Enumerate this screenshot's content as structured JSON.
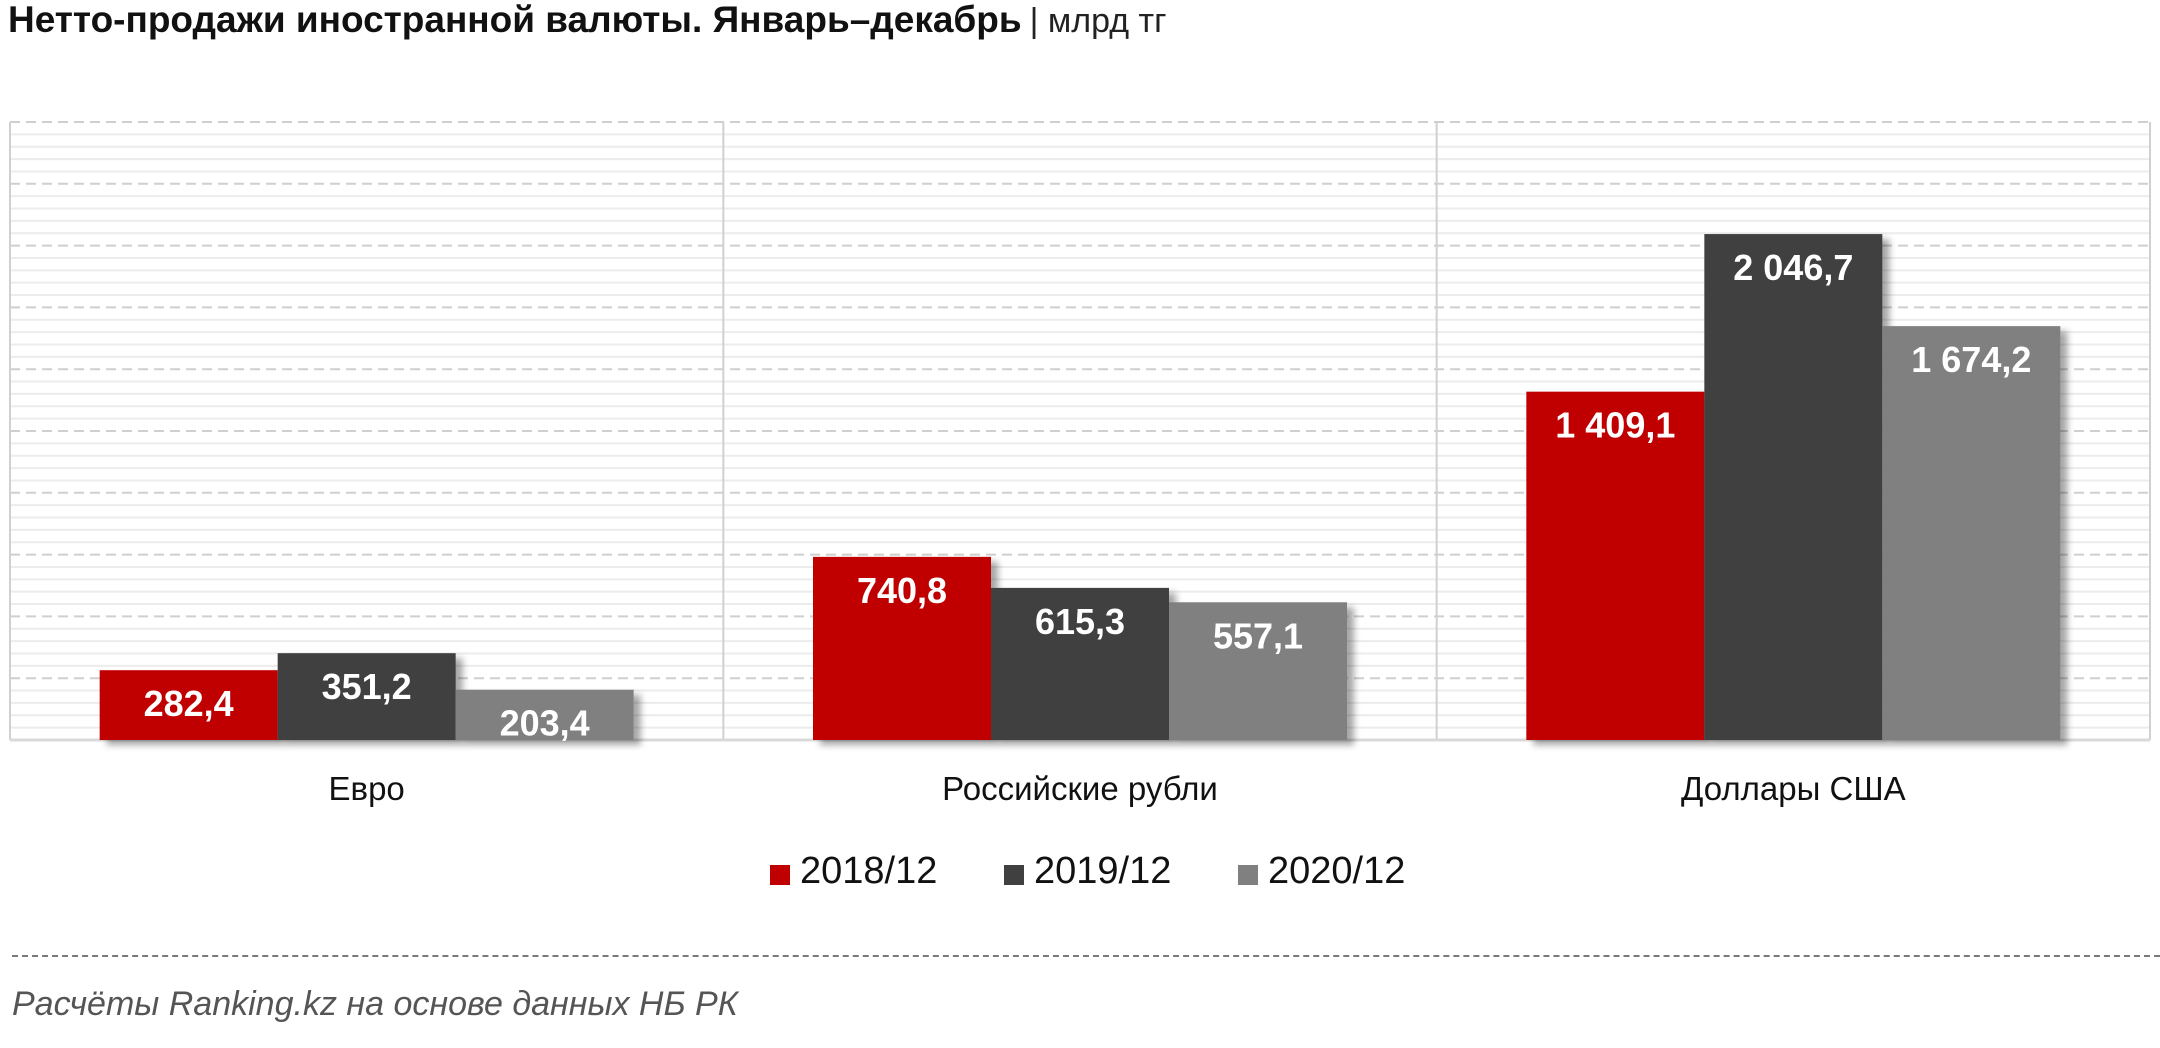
{
  "title": "Нетто-продажи иностранной валюты. Январь–декабрь",
  "unit": "| млрд тг",
  "source": "Расчёты Ranking.kz на основе данных НБ РК",
  "colors": {
    "s2018": "#C00000",
    "s2019": "#404040",
    "s2020": "#808080"
  },
  "chart_data": {
    "type": "bar",
    "categories": [
      "Евро",
      "Российские рубли",
      "Доллары США"
    ],
    "series": [
      {
        "name": "2018/12",
        "values": [
          282.4,
          740.8,
          1409.1
        ],
        "labels": [
          "282,4",
          "740,8",
          "1 409,1"
        ]
      },
      {
        "name": "2019/12",
        "values": [
          351.2,
          615.3,
          2046.7
        ],
        "labels": [
          "351,2",
          "615,3",
          "2 046,7"
        ]
      },
      {
        "name": "2020/12",
        "values": [
          203.4,
          557.1,
          1674.2
        ],
        "labels": [
          "203,4",
          "557,1",
          "1 674,2"
        ]
      }
    ],
    "ylim": [
      0,
      2500
    ],
    "grid": true,
    "legend": "bottom",
    "xlabel": "",
    "ylabel": ""
  }
}
